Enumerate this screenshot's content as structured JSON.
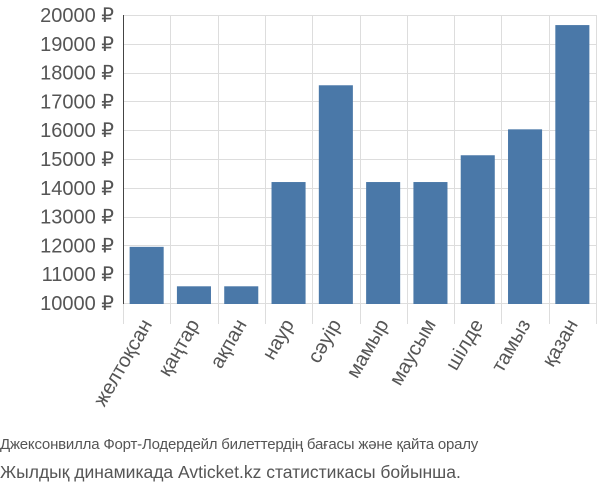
{
  "chart_data": {
    "type": "bar",
    "categories": [
      "желтоқсан",
      "қаңтар",
      "ақпан",
      "наур",
      "сәуір",
      "мамыр",
      "маусым",
      "шілде",
      "тамыз",
      "қазан"
    ],
    "values": [
      11950,
      10580,
      10580,
      14200,
      17560,
      14200,
      14200,
      15130,
      16030,
      19650
    ],
    "yticks": [
      10000,
      11000,
      12000,
      13000,
      14000,
      15000,
      16000,
      17000,
      18000,
      19000,
      20000
    ],
    "ytick_suffix": " ₽",
    "ylim": [
      9500,
      20000
    ],
    "grid": true,
    "colors": {
      "bar": "#4a78a8",
      "grid": "#dddddd",
      "axis": "#444444",
      "text": "#555555"
    }
  },
  "caption": {
    "line1": "Джексонвилла Форт-Лодердейл билеттердің бағасы және қайта оралу",
    "line2": "Жылдық динамикада Avticket.kz статистикасы бойынша."
  }
}
